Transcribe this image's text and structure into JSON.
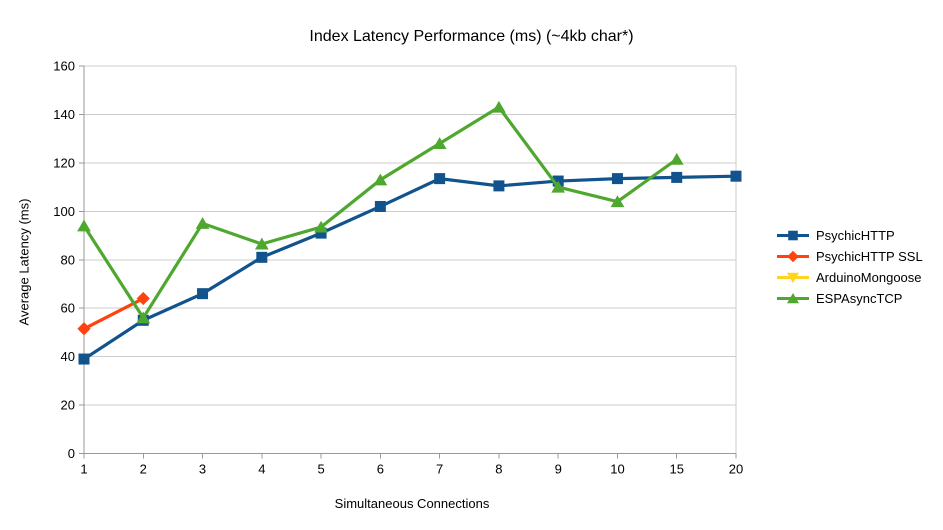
{
  "chart_data": {
    "type": "line",
    "title": "Index Latency Performance (ms) (~4kb char*)",
    "xlabel": "Simultaneous Connections",
    "ylabel": "Average Latency (ms)",
    "categories": [
      "1",
      "2",
      "3",
      "4",
      "5",
      "6",
      "7",
      "8",
      "9",
      "10",
      "15",
      "20"
    ],
    "ylim": [
      0,
      160
    ],
    "yticks": [
      0,
      20,
      40,
      60,
      80,
      100,
      120,
      140,
      160
    ],
    "grid": "horizontal",
    "legend_position": "right",
    "series": [
      {
        "name": "PsychicHTTP",
        "color": "#11538D",
        "marker": "square",
        "values": [
          39,
          55,
          66,
          81,
          91,
          102,
          113.5,
          110.5,
          112.5,
          113.5,
          114,
          114.5
        ]
      },
      {
        "name": "PsychicHTTP SSL",
        "color": "#FF420E",
        "marker": "diamond",
        "values": [
          51.5,
          64,
          null,
          null,
          null,
          null,
          null,
          null,
          null,
          null,
          null,
          null
        ]
      },
      {
        "name": "ArduinoMongoose",
        "color": "#FFD320",
        "marker": "triangle-down",
        "values": [
          null,
          null,
          null,
          null,
          null,
          null,
          null,
          null,
          null,
          null,
          null,
          null
        ]
      },
      {
        "name": "ESPAsyncTCP",
        "color": "#4EA72E",
        "marker": "triangle-up",
        "values": [
          94,
          56,
          95,
          86.5,
          93.5,
          113,
          128,
          143,
          110,
          104,
          121.5,
          null
        ]
      }
    ],
    "style": {
      "grid_color": "#cccccc",
      "axis_color": "#999999",
      "background": "#ffffff"
    }
  }
}
